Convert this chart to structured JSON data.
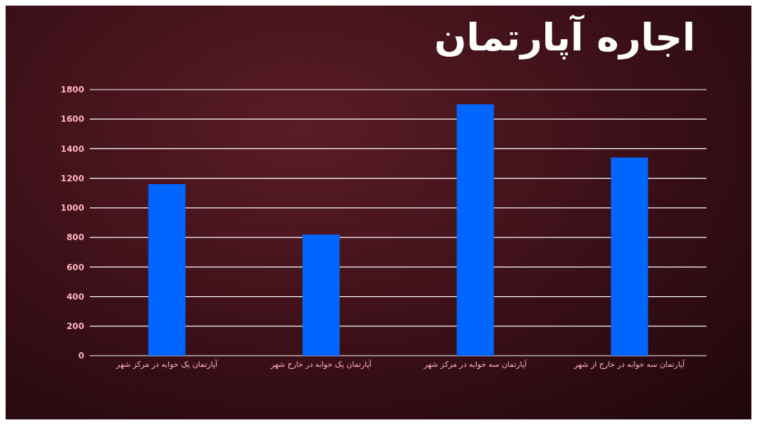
{
  "chart_data": {
    "type": "bar",
    "title": "اجاره آپارتمان",
    "categories": [
      "آپارتمان یک خوابه در مرکز شهر",
      "آپارتمان یک خوابه در خارج شهر",
      "آپارتمان سه خوابه در مرکز شهر",
      "آپارتمان سه خوابه در خارج از شهر"
    ],
    "values": [
      1160,
      820,
      1700,
      1340
    ],
    "color": "#0066ff",
    "ylim": [
      0,
      1800
    ],
    "yticks": [
      0,
      200,
      400,
      600,
      800,
      1000,
      1200,
      1400,
      1600,
      1800
    ],
    "grid": "y"
  }
}
